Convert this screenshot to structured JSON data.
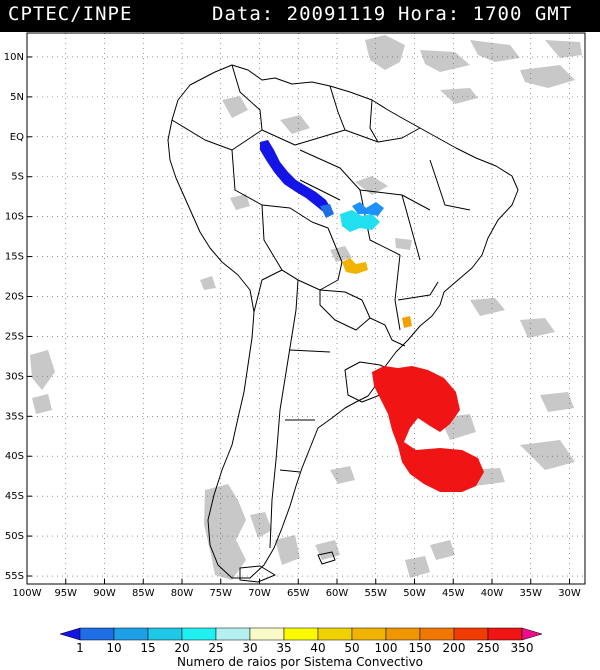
{
  "header": {
    "source": "CPTEC/INPE",
    "date_text": "Data: 20091119",
    "time_text": "Hora: 1700 GMT"
  },
  "map": {
    "lon_range": [
      -100,
      -28
    ],
    "lat_range": [
      -56,
      13
    ],
    "lat_labels": [
      "10N",
      "5N",
      "EQ",
      "5S",
      "10S",
      "15S",
      "20S",
      "25S",
      "30S",
      "35S",
      "40S",
      "45S",
      "50S",
      "55S"
    ],
    "lat_values": [
      10,
      5,
      0,
      -5,
      -10,
      -15,
      -20,
      -25,
      -30,
      -35,
      -40,
      -45,
      -50,
      -55
    ],
    "lon_labels": [
      "100W",
      "95W",
      "90W",
      "85W",
      "80W",
      "75W",
      "70W",
      "65W",
      "60W",
      "55W",
      "50W",
      "45W",
      "40W",
      "35W",
      "30W"
    ],
    "lon_values": [
      -100,
      -95,
      -90,
      -85,
      -80,
      -75,
      -70,
      -65,
      -60,
      -55,
      -50,
      -45,
      -40,
      -35,
      -30
    ],
    "cloud_color": "#c8c8c8",
    "boundary_color": "#000000",
    "convective_systems": [
      {
        "name": "amazon-band",
        "color": "#1414e6"
      },
      {
        "name": "acre-cell",
        "color": "#1e6ee6"
      },
      {
        "name": "mato-grosso-cells",
        "color": "#20e0f0"
      },
      {
        "name": "blue-cells",
        "color": "#1e90ff"
      },
      {
        "name": "pantanal-cells",
        "color": "#f0b400"
      },
      {
        "name": "parana-cells",
        "color": "#f0a000"
      },
      {
        "name": "south-atlantic-system",
        "color": "#f01414"
      }
    ]
  },
  "colorbar": {
    "ticks": [
      "1",
      "10",
      "15",
      "20",
      "25",
      "30",
      "35",
      "40",
      "50",
      "100",
      "150",
      "200",
      "250",
      "350"
    ],
    "colors": [
      "#1414e6",
      "#1e6ee6",
      "#1ea0e6",
      "#1ec8e6",
      "#20f0f0",
      "#b4f0f0",
      "#fafac8",
      "#fafa00",
      "#f0d200",
      "#f0b400",
      "#f09600",
      "#f07800",
      "#f03c00",
      "#f01414",
      "#f00a8c"
    ],
    "label": "Numero de raios por Sistema Convectivo"
  }
}
